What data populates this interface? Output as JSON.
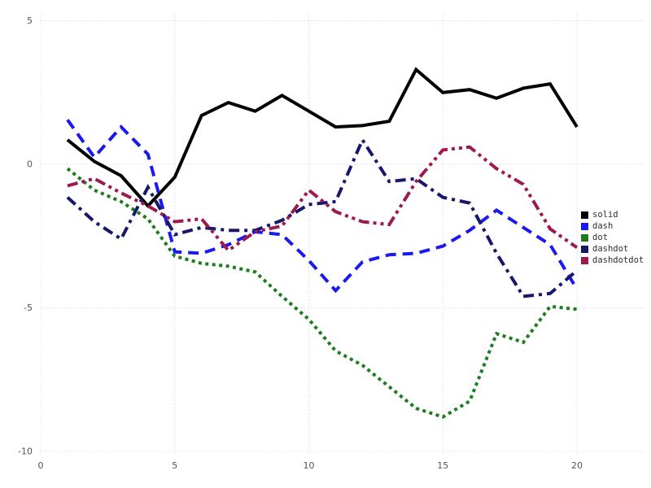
{
  "chart_data": {
    "type": "line",
    "title": "",
    "xlabel": "",
    "ylabel": "",
    "grid": true,
    "grid_style": "dotted",
    "legend_position": "right",
    "xlim": [
      0,
      20.25
    ],
    "ylim": [
      -10.4,
      5.3
    ],
    "xticks": [
      "0",
      "5",
      "10",
      "15",
      "20"
    ],
    "yticks": [
      "-10",
      "-5",
      "0",
      "5"
    ],
    "xtick_values": [
      0,
      5,
      10,
      15,
      20
    ],
    "ytick_values": [
      -10,
      -5,
      0,
      5
    ],
    "x": [
      1,
      2,
      3,
      4,
      5,
      6,
      7,
      8,
      9,
      10,
      11,
      12,
      13,
      14,
      15,
      16,
      17,
      18,
      19,
      20
    ],
    "series": [
      {
        "name": "solid",
        "color": "#000000",
        "linestyle": "solid",
        "values": [
          0.85,
          0.1,
          -0.4,
          -1.45,
          -0.45,
          1.7,
          2.15,
          1.85,
          2.4,
          1.85,
          1.3,
          1.35,
          1.5,
          3.3,
          2.5,
          2.6,
          2.3,
          2.65,
          2.8,
          1.3
        ]
      },
      {
        "name": "dash",
        "color": "#1a1af0",
        "linestyle": "dash",
        "values": [
          1.55,
          0.25,
          1.3,
          0.35,
          -3.05,
          -3.1,
          -2.8,
          -2.35,
          -2.45,
          -3.35,
          -4.4,
          -3.4,
          -3.15,
          -3.1,
          -2.85,
          -2.3,
          -1.6,
          -2.2,
          -2.8,
          -4.35
        ]
      },
      {
        "name": "dot",
        "color": "#1e7b1e",
        "linestyle": "dot",
        "values": [
          -0.15,
          -0.9,
          -1.3,
          -1.9,
          -3.2,
          -3.45,
          -3.55,
          -3.75,
          -4.6,
          -5.4,
          -6.5,
          -7.0,
          -7.75,
          -8.5,
          -8.8,
          -8.25,
          -5.9,
          -6.2,
          -4.95,
          -5.05
        ]
      },
      {
        "name": "dashdot",
        "color": "#18186b",
        "linestyle": "dashdot",
        "values": [
          -1.15,
          -2.0,
          -2.6,
          -0.8,
          -2.45,
          -2.2,
          -2.3,
          -2.3,
          -1.95,
          -1.4,
          -1.3,
          0.85,
          -0.6,
          -0.5,
          -1.15,
          -1.35,
          -3.1,
          -4.6,
          -4.5,
          -3.7
        ]
      },
      {
        "name": "dashdotdot",
        "color": "#9c1b4e",
        "linestyle": "dashdotdot",
        "values": [
          -0.75,
          -0.5,
          -1.0,
          -1.45,
          -2.0,
          -1.9,
          -3.0,
          -2.35,
          -2.15,
          -0.9,
          -1.65,
          -2.0,
          -2.1,
          -0.6,
          0.5,
          0.6,
          -0.15,
          -0.7,
          -2.25,
          -2.9
        ]
      }
    ],
    "grid_color": "#dcdce8",
    "tick_label_color": "#545454"
  }
}
